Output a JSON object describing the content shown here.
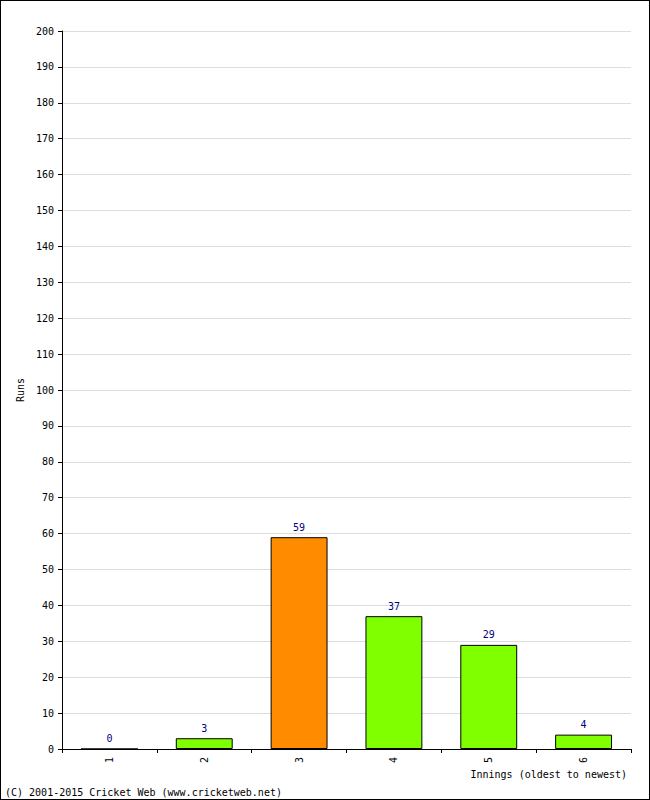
{
  "chart_data": {
    "type": "bar",
    "categories": [
      "1",
      "2",
      "3",
      "4",
      "5",
      "6"
    ],
    "values": [
      0,
      3,
      59,
      37,
      29,
      4
    ],
    "colors": [
      "#80ff00",
      "#80ff00",
      "#ff8c00",
      "#80ff00",
      "#80ff00",
      "#80ff00"
    ],
    "x_label": "Innings (oldest to newest)",
    "y_label": "Runs",
    "annotations": [
      "(C) 2001-2015 Cricket Web (www.cricketweb.net)"
    ],
    "ylim": [
      0,
      200
    ],
    "yticks": [
      0,
      10,
      20,
      30,
      40,
      50,
      60,
      70,
      80,
      90,
      100,
      110,
      120,
      130,
      140,
      150,
      160,
      170,
      180,
      190,
      200
    ],
    "grid": true,
    "data_labels": true
  }
}
